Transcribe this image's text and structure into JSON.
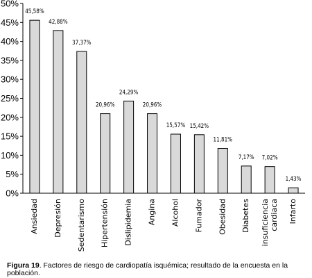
{
  "chart_data": {
    "type": "bar",
    "categories": [
      "Ansiedad",
      "Depresión",
      "Sedentarismo",
      "Hipertensión",
      "Dislipidemia",
      "Angina",
      "Alcohol",
      "Fumador",
      "Obesidad",
      "Diabetes",
      "insuficiencia cardiaca",
      "Infarto"
    ],
    "values": [
      45.58,
      42.88,
      37.37,
      20.96,
      24.29,
      20.96,
      15.57,
      15.42,
      11.81,
      7.17,
      7.02,
      1.43
    ],
    "data_labels": [
      "45,58%",
      "42,88%",
      "37,37%",
      "20,96%",
      "24,29%",
      "20,96%",
      "15,57%",
      "15,42%",
      "11,81%",
      "7,17%",
      "7,02%",
      "1,43%"
    ],
    "yticks": [
      "0%",
      "5%",
      "10%",
      "15%",
      "20%",
      "25%",
      "30%",
      "35%",
      "40%",
      "45%",
      "50%"
    ],
    "ylim": [
      0,
      50
    ],
    "grid": false,
    "bar_color": "#d9d9d9",
    "bar_stroke": "#000000"
  },
  "caption": {
    "label": "Figura 19",
    "text": ". Factores de riesgo de cardiopatía isquémica; resultado de la encuesta en la población."
  }
}
